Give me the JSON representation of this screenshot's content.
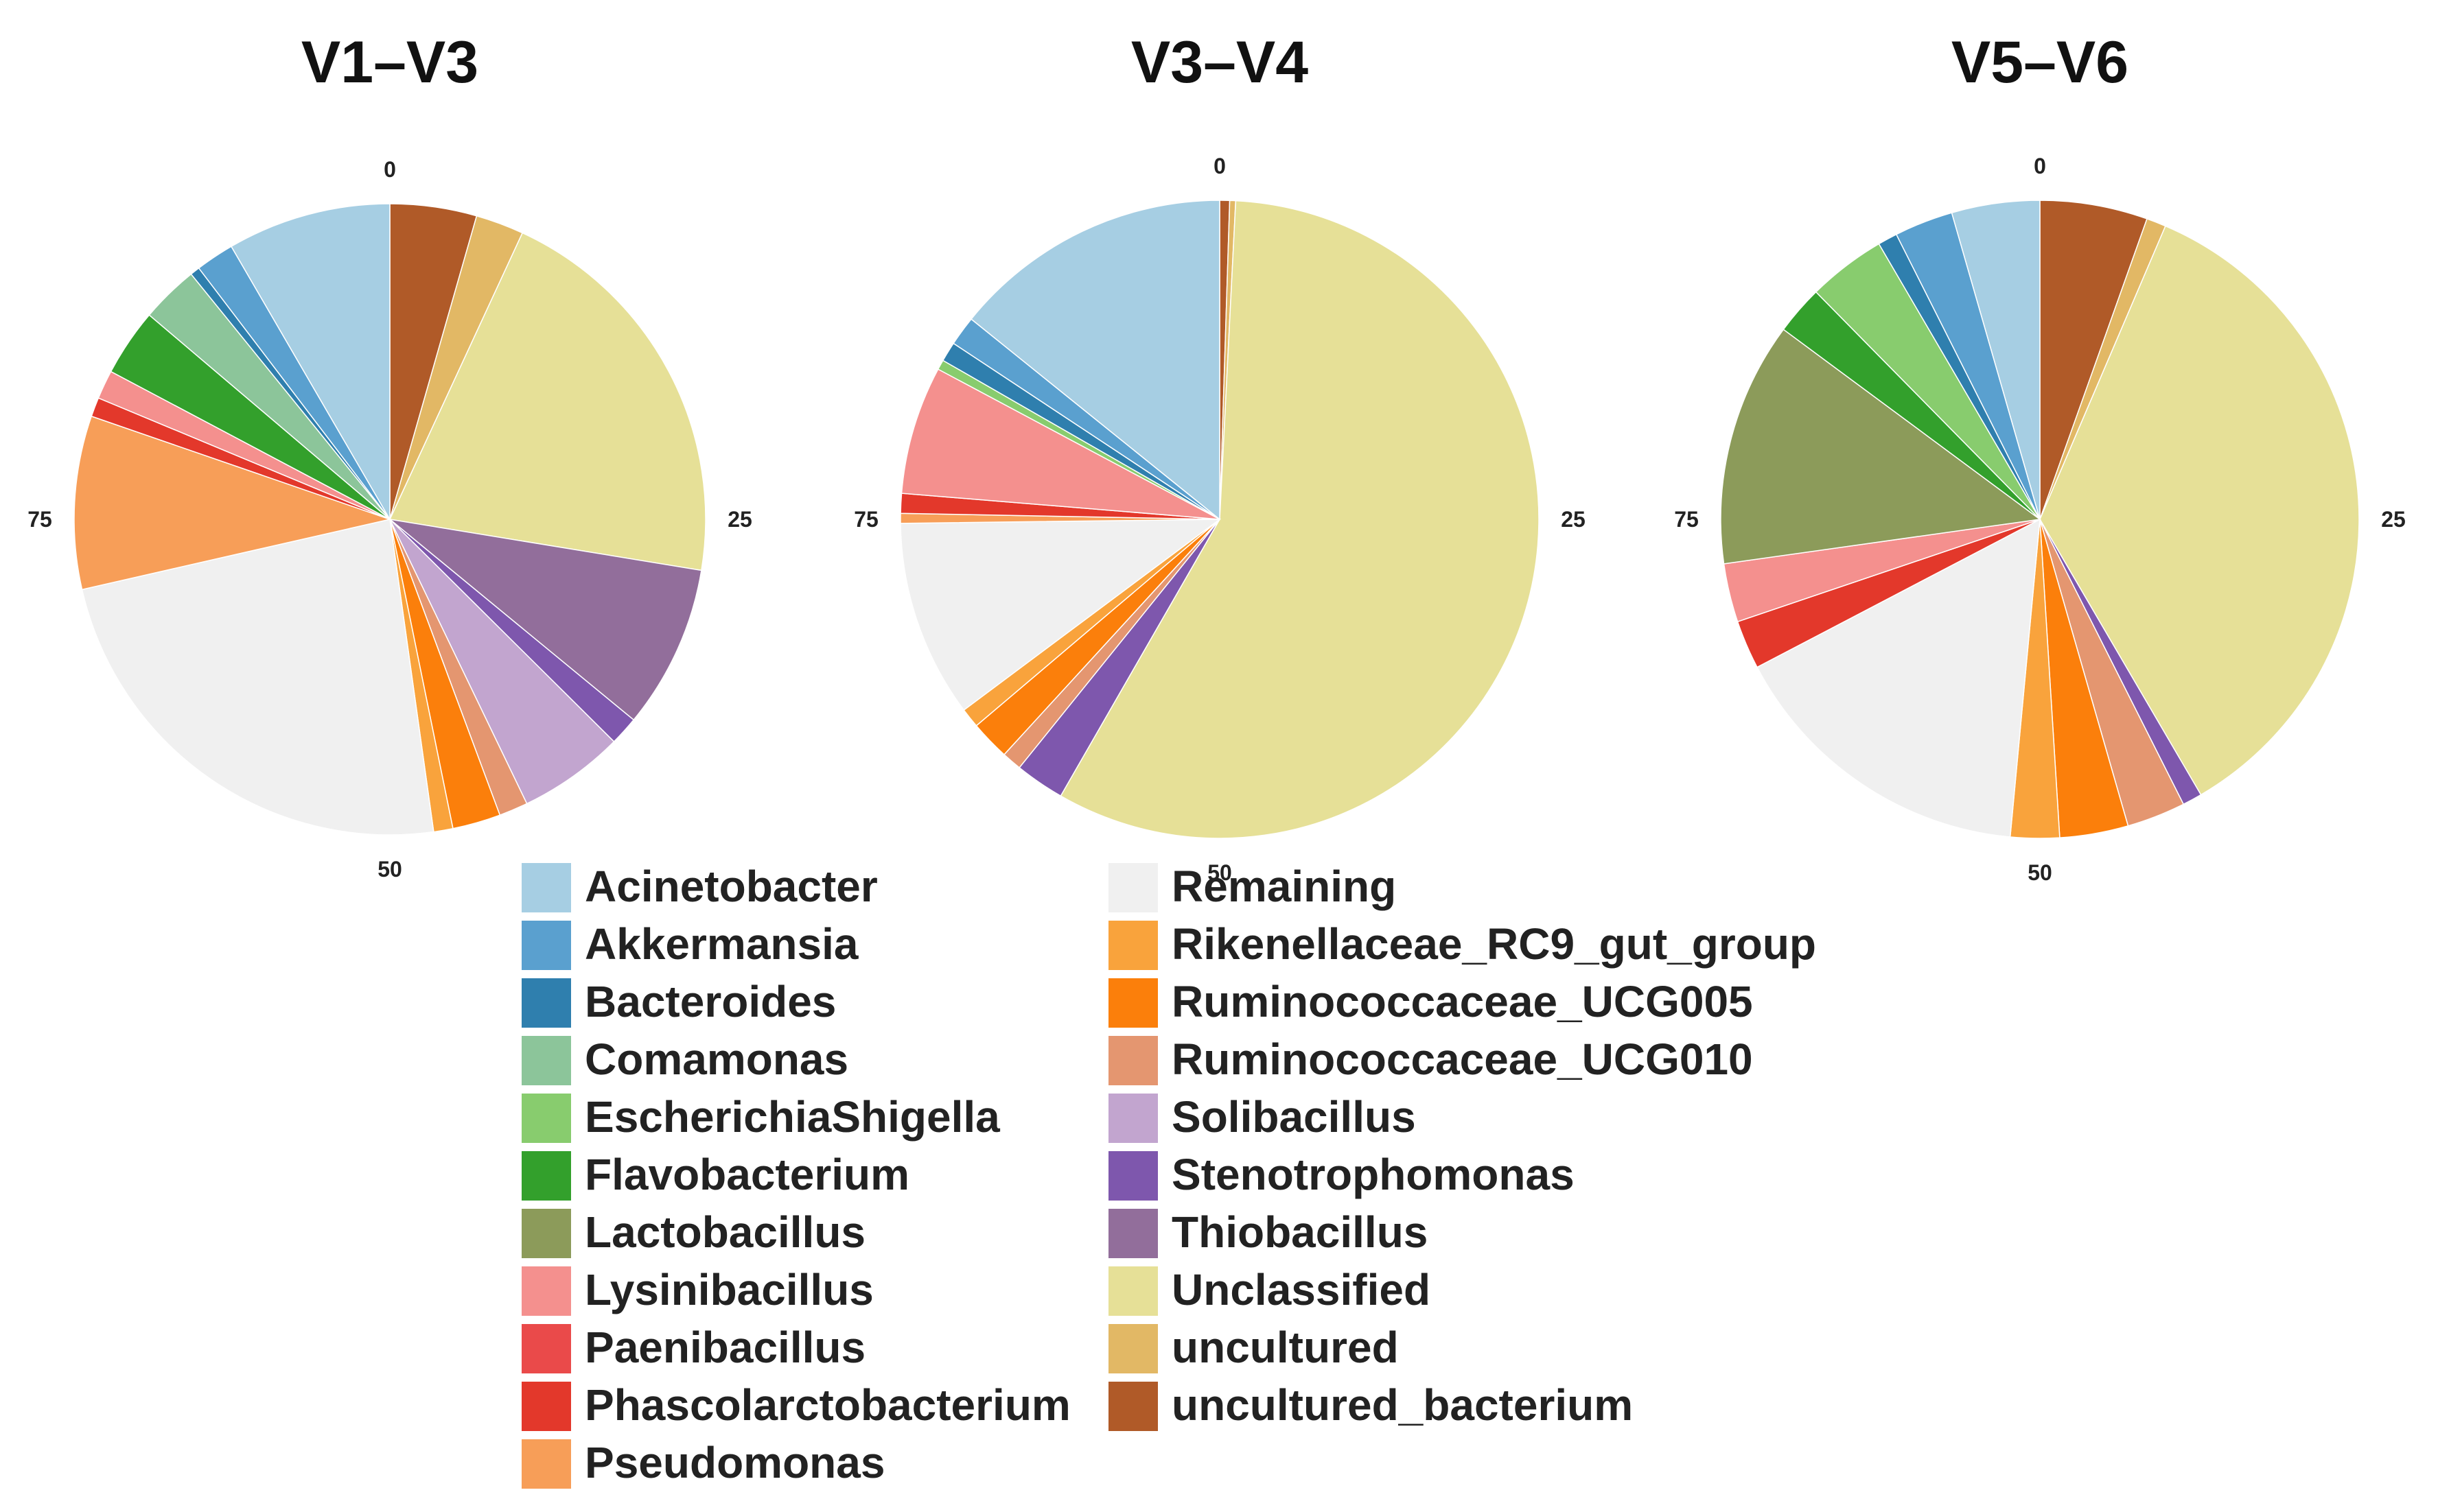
{
  "chart_data": {
    "type": "pie",
    "tick_labels": [
      "0",
      "25",
      "50",
      "75"
    ],
    "colors": {
      "Acinetobacter": "#a6cee3",
      "Akkermansia": "#5aa0cf",
      "Bacteroides": "#2f7fae",
      "Comamonas": "#8cc59a",
      "EscherichiaShigella": "#88cc6e",
      "Flavobacterium": "#33a02c",
      "Lactobacillus": "#8c9b5a",
      "Lysinibacillus": "#f4908e",
      "Paenibacillus": "#ea4a4a",
      "Phascolarctobacterium": "#e3382b",
      "Pseudomonas": "#f79e58",
      "Remaining": "#f0f0f0",
      "Rikenellaceae_RC9_gut_group": "#f9a33c",
      "Ruminococcaceae_UCG005": "#fb7f0b",
      "Ruminococcaceae_UCG010": "#e49670",
      "Solibacillus": "#c2a5cf",
      "Stenotrophomonas": "#7e57ad",
      "Thiobacillus": "#926e9b",
      "Unclassified": "#e6e097",
      "uncultured": "#e2b865",
      "uncultured_bacterium": "#b05a28"
    },
    "legend": [
      "Acinetobacter",
      "Akkermansia",
      "Bacteroides",
      "Comamonas",
      "EscherichiaShigella",
      "Flavobacterium",
      "Lactobacillus",
      "Lysinibacillus",
      "Paenibacillus",
      "Phascolarctobacterium",
      "Pseudomonas",
      "Remaining",
      "Rikenellaceae_RC9_gut_group",
      "Ruminococcaceae_UCG005",
      "Ruminococcaceae_UCG010",
      "Solibacillus",
      "Stenotrophomonas",
      "Thiobacillus",
      "Unclassified",
      "uncultured",
      "uncultured_bacterium"
    ],
    "pies": [
      {
        "title": "V1–V3",
        "slices": [
          {
            "label": "uncultured_bacterium",
            "value": 4.5
          },
          {
            "label": "uncultured",
            "value": 2.5
          },
          {
            "label": "Unclassified",
            "value": 21.0
          },
          {
            "label": "Thiobacillus",
            "value": 8.5
          },
          {
            "label": "Stenotrophomonas",
            "value": 1.5
          },
          {
            "label": "Solibacillus",
            "value": 5.5
          },
          {
            "label": "Ruminococcaceae_UCG010",
            "value": 1.5
          },
          {
            "label": "Ruminococcaceae_UCG005",
            "value": 2.5
          },
          {
            "label": "Rikenellaceae_RC9_gut_group",
            "value": 1.0
          },
          {
            "label": "Remaining",
            "value": 24.0
          },
          {
            "label": "Pseudomonas",
            "value": 9.0
          },
          {
            "label": "Phascolarctobacterium",
            "value": 1.0
          },
          {
            "label": "Lysinibacillus",
            "value": 1.5
          },
          {
            "label": "Flavobacterium",
            "value": 3.5
          },
          {
            "label": "Comamonas",
            "value": 3.0
          },
          {
            "label": "Bacteroides",
            "value": 0.5
          },
          {
            "label": "Akkermansia",
            "value": 2.0
          },
          {
            "label": "Acinetobacter",
            "value": 8.5
          }
        ]
      },
      {
        "title": "V3–V4",
        "slices": [
          {
            "label": "uncultured_bacterium",
            "value": 0.5
          },
          {
            "label": "uncultured",
            "value": 0.3
          },
          {
            "label": "Unclassified",
            "value": 57.5
          },
          {
            "label": "Stenotrophomonas",
            "value": 2.5
          },
          {
            "label": "Ruminococcaceae_UCG010",
            "value": 1.0
          },
          {
            "label": "Ruminococcaceae_UCG005",
            "value": 2.0
          },
          {
            "label": "Rikenellaceae_RC9_gut_group",
            "value": 1.0
          },
          {
            "label": "Remaining",
            "value": 10.0
          },
          {
            "label": "Pseudomonas",
            "value": 0.5
          },
          {
            "label": "Phascolarctobacterium",
            "value": 1.0
          },
          {
            "label": "Lysinibacillus",
            "value": 6.5
          },
          {
            "label": "EscherichiaShigella",
            "value": 0.5
          },
          {
            "label": "Bacteroides",
            "value": 1.0
          },
          {
            "label": "Akkermansia",
            "value": 1.5
          },
          {
            "label": "Acinetobacter",
            "value": 14.2
          }
        ]
      },
      {
        "title": "V5–V6",
        "slices": [
          {
            "label": "uncultured_bacterium",
            "value": 5.5
          },
          {
            "label": "uncultured",
            "value": 1.0
          },
          {
            "label": "Unclassified",
            "value": 35.5
          },
          {
            "label": "Stenotrophomonas",
            "value": 1.0
          },
          {
            "label": "Ruminococcaceae_UCG010",
            "value": 3.0
          },
          {
            "label": "Ruminococcaceae_UCG005",
            "value": 3.5
          },
          {
            "label": "Rikenellaceae_RC9_gut_group",
            "value": 2.5
          },
          {
            "label": "Remaining",
            "value": 16.0
          },
          {
            "label": "Phascolarctobacterium",
            "value": 2.5
          },
          {
            "label": "Lysinibacillus",
            "value": 3.0
          },
          {
            "label": "Lactobacillus",
            "value": 12.5
          },
          {
            "label": "Flavobacterium",
            "value": 2.5
          },
          {
            "label": "EscherichiaShigella",
            "value": 4.0
          },
          {
            "label": "Bacteroides",
            "value": 1.0
          },
          {
            "label": "Akkermansia",
            "value": 3.0
          },
          {
            "label": "Acinetobacter",
            "value": 4.5
          }
        ]
      }
    ]
  }
}
